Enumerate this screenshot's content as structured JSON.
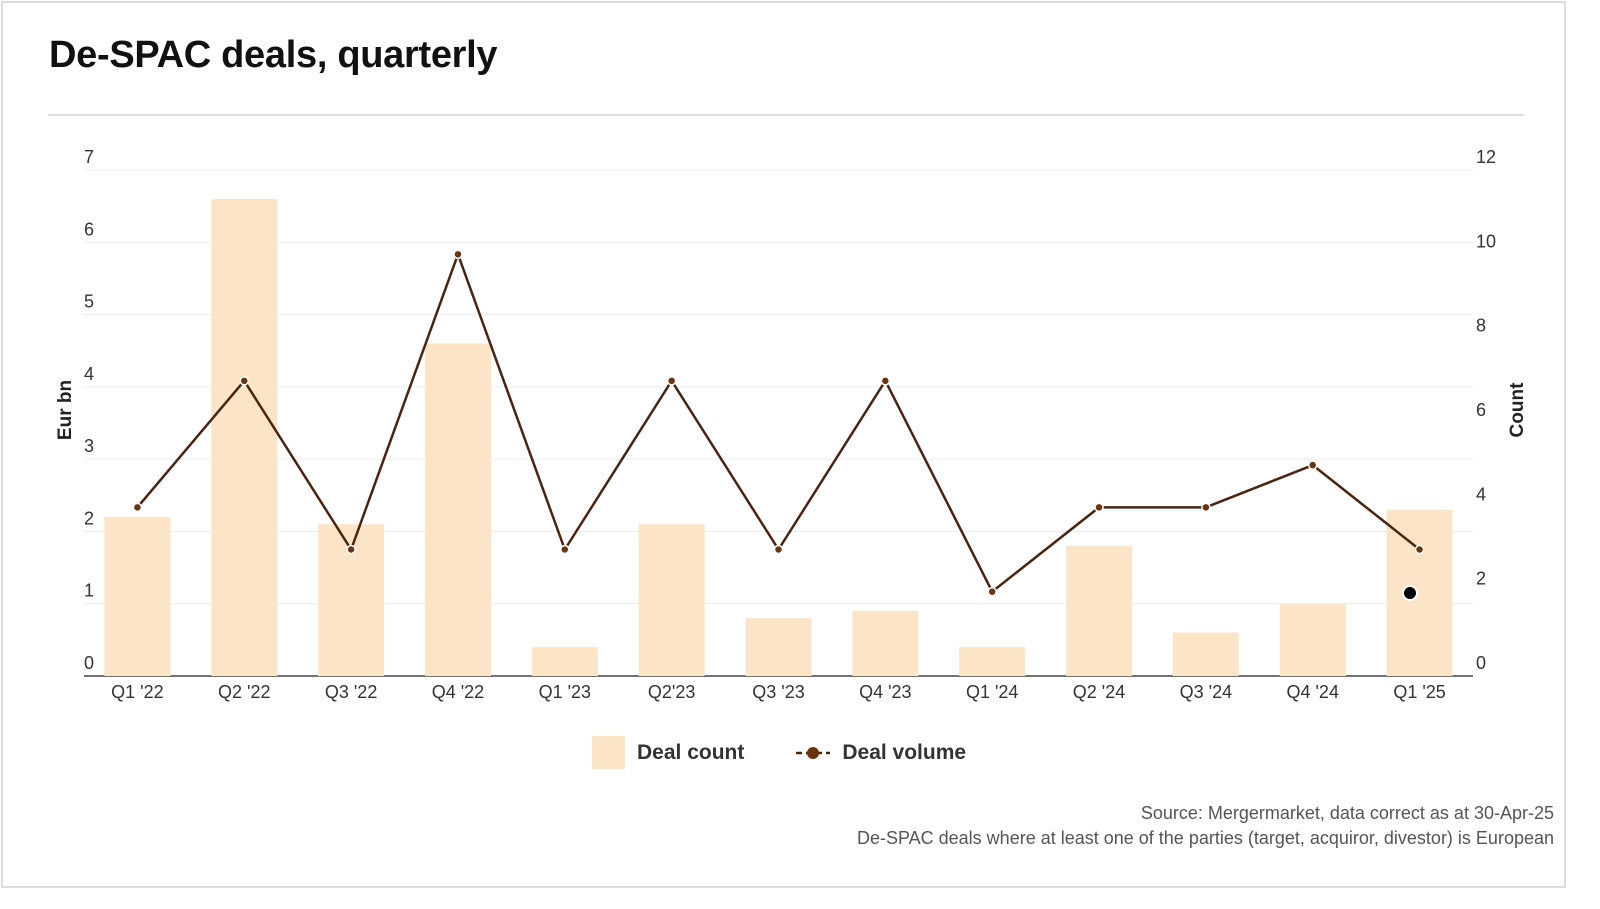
{
  "title": "De-SPAC deals, quarterly",
  "colors": {
    "bar": "#fce5c6",
    "line": "#4a2410",
    "marker": "#6b3410",
    "grid": "#ececec",
    "axis": "#444444"
  },
  "legend": {
    "bar_label": "Deal count",
    "line_label": "Deal volume"
  },
  "source": {
    "line1": "Source: Mergermarket, data correct as at 30-Apr-25",
    "line2": "De-SPAC deals where at least one of the parties (target, acquiror, divestor) is European"
  },
  "chart_data": {
    "type": "bar",
    "categories": [
      "Q1 '22",
      "Q2 '22",
      "Q3 '22",
      "Q4 '22",
      "Q1 '23",
      "Q2'23",
      "Q3 '23",
      "Q4 '23",
      "Q1 '24",
      "Q2 '24",
      "Q3 '24",
      "Q4 '24",
      "Q1 '25"
    ],
    "series": [
      {
        "name": "Deal count",
        "type": "bar",
        "axis": "left",
        "values": [
          2.2,
          6.6,
          2.1,
          4.6,
          0.4,
          2.1,
          0.8,
          0.9,
          0.4,
          1.8,
          0.6,
          1.0,
          2.3
        ]
      },
      {
        "name": "Deal volume",
        "type": "line",
        "axis": "right",
        "values": [
          4,
          7,
          3,
          10,
          3,
          7,
          3,
          7,
          2,
          4,
          4,
          5,
          3
        ]
      }
    ],
    "ylabel_left": "Eur bn",
    "ylabel_right": "Count",
    "ylim_left": [
      0,
      7
    ],
    "ylim_right": [
      0,
      12
    ],
    "yticks_left": [
      0,
      1,
      2,
      3,
      4,
      5,
      6,
      7
    ],
    "yticks_right": [
      0,
      2,
      4,
      6,
      8,
      10,
      12
    ],
    "grid": true,
    "legend_position": "bottom-center"
  }
}
